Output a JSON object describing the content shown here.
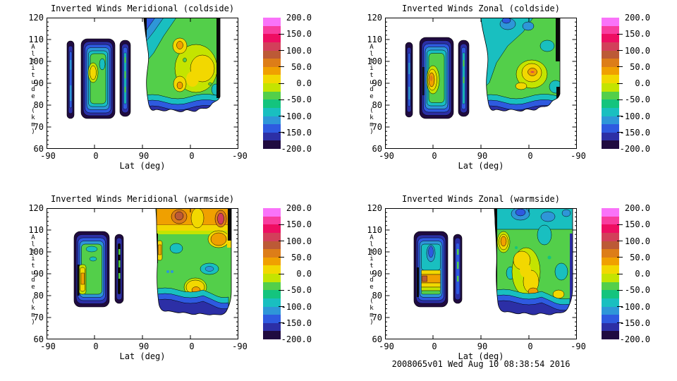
{
  "figure": {
    "background": "#ffffff",
    "timestamp": "2008065v01 Wed Aug 10 08:38:54 2016"
  },
  "axes": {
    "x_label": "Lat (deg)",
    "y_label": "Altitude (km)",
    "x_ticks": [
      "-90",
      "0",
      "90",
      "0",
      "-90"
    ],
    "y_ticks": [
      "120",
      "110",
      "100",
      "90",
      "80",
      "70",
      "60"
    ]
  },
  "colorbar": {
    "tick_labels": [
      "200.0",
      "150.0",
      "100.0",
      "50.0",
      "0.0",
      "-50.0",
      "-100.0",
      "-150.0",
      "-200.0"
    ],
    "min": -200.0,
    "max": 200.0,
    "label_step": 50.0,
    "colors": [
      "#f973f9",
      "#f83c9e",
      "#ee0d62",
      "#d23f5a",
      "#bc5a36",
      "#dd7d18",
      "#f0a000",
      "#f2d800",
      "#c4e400",
      "#53cf4a",
      "#14c47e",
      "#19bfc0",
      "#2e96d8",
      "#2e5ae0",
      "#2c2fa6",
      "#200b40"
    ]
  },
  "panels": [
    {
      "title": "Inverted Winds Meridional (coldside)"
    },
    {
      "title": "Inverted Winds Zonal (coldside)"
    },
    {
      "title": "Inverted Winds Meridional (warmside)"
    },
    {
      "title": "Inverted Winds Zonal (warmside)"
    }
  ],
  "chart_data": [
    {
      "type": "filled_contour",
      "title": "Inverted Winds Meridional (coldside)",
      "xlabel": "Lat (deg)",
      "ylabel": "Altitude (km)",
      "x_tick_labels": [
        "-90",
        "0",
        "90",
        "0",
        "-90"
      ],
      "x_axis_note": "latitude sweeps -90 to 90 then back to -90 along track",
      "ylim": [
        60,
        120
      ],
      "levels": {
        "min": -200,
        "max": 200,
        "n_bands": 16
      },
      "features": [
        {
          "shape": "narrow vertical band",
          "lat": -45,
          "alt": [
            75,
            107
          ],
          "value_range": [
            -175,
            -100
          ]
        },
        {
          "shape": "rounded blob",
          "lat": [
            -25,
            12
          ],
          "alt": [
            75,
            110
          ],
          "interior_value": -40,
          "local_max": {
            "alt": 94,
            "value": 15
          }
        },
        {
          "shape": "narrow vertical band",
          "lat": [
            48,
            62
          ],
          "alt": [
            75,
            108
          ],
          "value_range": [
            -175,
            -75
          ]
        },
        {
          "shape": "large field descending track",
          "lat": [
            90,
            -55
          ],
          "alt": [
            75,
            120
          ],
          "interior_value": -40,
          "local_maxima": [
            {
              "alt": 107,
              "value": 45
            },
            {
              "alt": 100,
              "value": 20
            },
            {
              "alt": 92,
              "value": 55
            }
          ],
          "edge_value": -200
        }
      ]
    },
    {
      "type": "filled_contour",
      "title": "Inverted Winds Zonal (coldside)",
      "xlabel": "Lat (deg)",
      "ylabel": "Altitude (km)",
      "x_tick_labels": [
        "-90",
        "0",
        "90",
        "0",
        "-90"
      ],
      "ylim": [
        60,
        120
      ],
      "levels": {
        "min": -200,
        "max": 200,
        "n_bands": 16
      },
      "features": [
        {
          "shape": "narrow vertical band",
          "lat": -45,
          "alt": [
            78,
            108
          ],
          "value_range": [
            -175,
            -100
          ]
        },
        {
          "shape": "rounded blob",
          "lat": [
            -25,
            12
          ],
          "alt": [
            75,
            110
          ],
          "interior_value": -40,
          "local_max": {
            "alt": 88,
            "value": 60
          }
        },
        {
          "shape": "narrow vertical band",
          "lat": [
            48,
            62
          ],
          "alt": [
            75,
            108
          ],
          "value_range": [
            -175,
            -75
          ]
        },
        {
          "shape": "large field descending track",
          "lat": [
            90,
            -55
          ],
          "alt": [
            75,
            120
          ],
          "interior_value": -60,
          "local_maxima": [
            {
              "alt": 95,
              "value": 65
            },
            {
              "alt": 85,
              "value": 20
            }
          ],
          "edge_value": -200
        }
      ]
    },
    {
      "type": "filled_contour",
      "title": "Inverted Winds Meridional (warmside)",
      "xlabel": "Lat (deg)",
      "ylabel": "Altitude (km)",
      "x_tick_labels": [
        "-90",
        "0",
        "90",
        "0",
        "-90"
      ],
      "ylim": [
        60,
        120
      ],
      "levels": {
        "min": -200,
        "max": 200,
        "n_bands": 16
      },
      "features": [
        {
          "shape": "rounded blob",
          "lat": [
            -38,
            12
          ],
          "alt": [
            75,
            110
          ],
          "interior_value": -30,
          "local_max": {
            "lat": -20,
            "alt": 88,
            "value": 20
          }
        },
        {
          "shape": "narrow vertical band",
          "lat": [
            40,
            52
          ],
          "alt": [
            77,
            109
          ],
          "value_range": [
            -200,
            -75
          ]
        },
        {
          "shape": "large field descending track",
          "lat": [
            65,
            -75
          ],
          "alt": [
            72,
            120
          ],
          "interior_value": -40,
          "local_maxima": [
            {
              "alt": 115,
              "value": 95
            },
            {
              "alt": 114,
              "value": 110,
              "note": "dark core right"
            },
            {
              "alt": 104,
              "value": 60
            },
            {
              "alt": 83,
              "value": 50
            }
          ],
          "local_minima": [
            {
              "alt": 101,
              "value": -90
            },
            {
              "alt": 92,
              "value": -90
            }
          ],
          "edge_value": -200
        }
      ]
    },
    {
      "type": "filled_contour",
      "title": "Inverted Winds Zonal (warmside)",
      "xlabel": "Lat (deg)",
      "ylabel": "Altitude (km)",
      "x_tick_labels": [
        "-90",
        "0",
        "90",
        "0",
        "-90"
      ],
      "ylim": [
        60,
        120
      ],
      "levels": {
        "min": -200,
        "max": 200,
        "n_bands": 16
      },
      "features": [
        {
          "shape": "rounded blob",
          "lat": [
            -38,
            12
          ],
          "alt": [
            75,
            110
          ],
          "interior_value": -80,
          "local_max": {
            "alt": 85,
            "value": 60,
            "note": "orange band low altitude"
          }
        },
        {
          "shape": "narrow vertical band",
          "lat": [
            40,
            52
          ],
          "alt": [
            77,
            109
          ],
          "value_range": [
            -200,
            -75
          ]
        },
        {
          "shape": "large field descending track",
          "lat": [
            65,
            -75
          ],
          "alt": [
            72,
            120
          ],
          "interior_value": -50,
          "local_maxima": [
            {
              "alt": 103,
              "value": 55
            },
            {
              "alt": 90,
              "value": 20
            },
            {
              "alt": 83,
              "value": 50
            }
          ],
          "local_minima": [
            {
              "alt": 115,
              "value": -130
            }
          ],
          "edge_value": -200
        }
      ]
    }
  ]
}
